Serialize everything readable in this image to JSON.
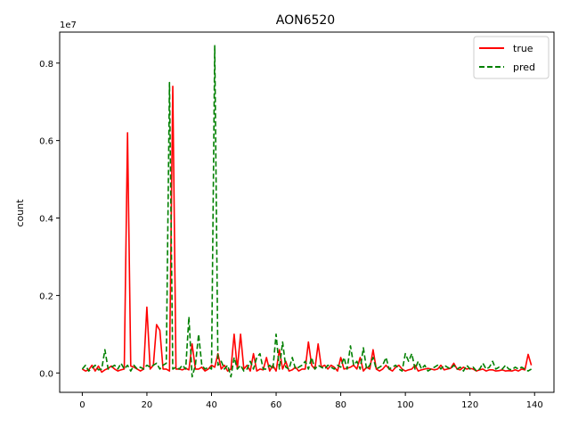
{
  "chart_data": {
    "type": "line",
    "title": "AON6520",
    "xlabel": "",
    "ylabel": "count",
    "y_offset_label": "1e7",
    "xlim": [
      -7,
      146
    ],
    "ylim": [
      -0.05,
      0.88
    ],
    "x_ticks": [
      0,
      20,
      40,
      60,
      80,
      100,
      120,
      140
    ],
    "y_ticks": [
      0.0,
      0.2,
      0.4,
      0.6,
      0.8
    ],
    "y_tick_labels": [
      "0.0",
      "0.2",
      "0.4",
      "0.6",
      "0.8"
    ],
    "grid": false,
    "legend_position": "top-right",
    "series": [
      {
        "name": "true",
        "color": "#ff0000",
        "dash": "solid",
        "x": [
          0,
          1,
          2,
          3,
          4,
          5,
          6,
          7,
          8,
          9,
          10,
          11,
          12,
          13,
          14,
          15,
          16,
          17,
          18,
          19,
          20,
          21,
          22,
          23,
          24,
          25,
          26,
          27,
          28,
          29,
          30,
          31,
          32,
          33,
          34,
          35,
          36,
          37,
          38,
          39,
          40,
          41,
          42,
          43,
          44,
          45,
          46,
          47,
          48,
          49,
          50,
          51,
          52,
          53,
          54,
          55,
          56,
          57,
          58,
          59,
          60,
          61,
          62,
          63,
          64,
          65,
          66,
          67,
          68,
          69,
          70,
          71,
          72,
          73,
          74,
          75,
          76,
          77,
          78,
          79,
          80,
          81,
          82,
          83,
          84,
          85,
          86,
          87,
          88,
          89,
          90,
          91,
          92,
          93,
          94,
          95,
          96,
          97,
          98,
          99,
          100,
          101,
          102,
          103,
          104,
          105,
          106,
          107,
          108,
          109,
          110,
          111,
          112,
          113,
          114,
          115,
          116,
          117,
          118,
          119,
          120,
          121,
          122,
          123,
          124,
          125,
          126,
          127,
          128,
          129,
          130,
          131,
          132,
          133,
          134,
          135,
          136,
          137,
          138,
          139
        ],
        "y": [
          0.01,
          0.005,
          0.008,
          0.02,
          0.005,
          0.018,
          0.002,
          0.008,
          0.012,
          0.018,
          0.01,
          0.005,
          0.008,
          0.01,
          0.62,
          0.018,
          0.015,
          0.01,
          0.005,
          0.01,
          0.17,
          0.01,
          0.02,
          0.125,
          0.11,
          0.01,
          0.01,
          0.005,
          0.74,
          0.01,
          0.01,
          0.008,
          0.012,
          0.008,
          0.075,
          0.01,
          0.01,
          0.015,
          0.005,
          0.01,
          0.02,
          0.015,
          0.05,
          0.01,
          0.02,
          0.005,
          0.01,
          0.1,
          0.01,
          0.1,
          0.01,
          0.02,
          0.005,
          0.05,
          0.005,
          0.01,
          0.008,
          0.04,
          0.005,
          0.02,
          0.005,
          0.06,
          0.01,
          0.03,
          0.005,
          0.008,
          0.015,
          0.005,
          0.01,
          0.01,
          0.08,
          0.02,
          0.01,
          0.075,
          0.015,
          0.02,
          0.01,
          0.02,
          0.015,
          0.005,
          0.04,
          0.01,
          0.012,
          0.015,
          0.02,
          0.01,
          0.04,
          0.005,
          0.015,
          0.01,
          0.06,
          0.01,
          0.005,
          0.01,
          0.02,
          0.01,
          0.005,
          0.015,
          0.02,
          0.01,
          0.005,
          0.008,
          0.01,
          0.02,
          0.005,
          0.008,
          0.01,
          0.012,
          0.01,
          0.008,
          0.01,
          0.02,
          0.008,
          0.01,
          0.012,
          0.025,
          0.01,
          0.008,
          0.015,
          0.01,
          0.012,
          0.01,
          0.005,
          0.008,
          0.01,
          0.005,
          0.008,
          0.008,
          0.005,
          0.006,
          0.008,
          0.005,
          0.006,
          0.005,
          0.008,
          0.005,
          0.01,
          0.008,
          0.048,
          0.02
        ]
      },
      {
        "name": "pred",
        "color": "#008000",
        "dash": "dashed",
        "x": [
          0,
          1,
          2,
          3,
          4,
          5,
          6,
          7,
          8,
          9,
          10,
          11,
          12,
          13,
          14,
          15,
          16,
          17,
          18,
          19,
          20,
          21,
          22,
          23,
          24,
          25,
          26,
          27,
          28,
          29,
          30,
          31,
          32,
          33,
          34,
          35,
          36,
          37,
          38,
          39,
          40,
          41,
          42,
          43,
          44,
          45,
          46,
          47,
          48,
          49,
          50,
          51,
          52,
          53,
          54,
          55,
          56,
          57,
          58,
          59,
          60,
          61,
          62,
          63,
          64,
          65,
          66,
          67,
          68,
          69,
          70,
          71,
          72,
          73,
          74,
          75,
          76,
          77,
          78,
          79,
          80,
          81,
          82,
          83,
          84,
          85,
          86,
          87,
          88,
          89,
          90,
          91,
          92,
          93,
          94,
          95,
          96,
          97,
          98,
          99,
          100,
          101,
          102,
          103,
          104,
          105,
          106,
          107,
          108,
          109,
          110,
          111,
          112,
          113,
          114,
          115,
          116,
          117,
          118,
          119,
          120,
          121,
          122,
          123,
          124,
          125,
          126,
          127,
          128,
          129,
          130,
          131,
          132,
          133,
          134,
          135,
          136,
          137,
          138,
          139
        ],
        "y": [
          0.01,
          0.02,
          0.005,
          0.012,
          0.02,
          0.008,
          0.01,
          0.06,
          0.01,
          0.015,
          0.02,
          0.01,
          0.025,
          0.01,
          0.02,
          0.005,
          0.02,
          0.01,
          0.015,
          0.01,
          0.02,
          0.015,
          0.02,
          0.025,
          0.01,
          0.02,
          0.025,
          0.75,
          0.01,
          0.015,
          0.01,
          0.02,
          0.01,
          0.145,
          -0.01,
          0.02,
          0.1,
          0.02,
          0.01,
          0.015,
          0.01,
          0.845,
          0.02,
          0.03,
          0.01,
          0.02,
          -0.01,
          0.04,
          0.01,
          0.02,
          0.005,
          0.01,
          0.03,
          0.01,
          0.04,
          0.05,
          0.01,
          0.01,
          0.02,
          0.01,
          0.1,
          0.01,
          0.08,
          0.015,
          0.01,
          0.04,
          0.01,
          0.015,
          0.02,
          0.03,
          0.01,
          0.04,
          0.01,
          0.02,
          0.015,
          0.01,
          0.02,
          0.015,
          0.01,
          0.02,
          0.015,
          0.04,
          0.01,
          0.07,
          0.02,
          0.03,
          0.01,
          0.065,
          0.01,
          0.02,
          0.04,
          0.01,
          0.015,
          0.02,
          0.04,
          0.01,
          0.015,
          0.02,
          0.01,
          0.005,
          0.05,
          0.03,
          0.05,
          0.01,
          0.03,
          0.01,
          0.02,
          0.005,
          0.01,
          0.015,
          0.02,
          0.01,
          0.02,
          0.015,
          0.01,
          0.02,
          0.01,
          0.015,
          0.005,
          0.02,
          0.01,
          0.015,
          0.005,
          0.01,
          0.025,
          0.01,
          0.015,
          0.03,
          0.01,
          0.015,
          0.01,
          0.02,
          0.01,
          0.008,
          0.015,
          0.01,
          0.015,
          0.01,
          0.005,
          0.01
        ]
      }
    ]
  }
}
